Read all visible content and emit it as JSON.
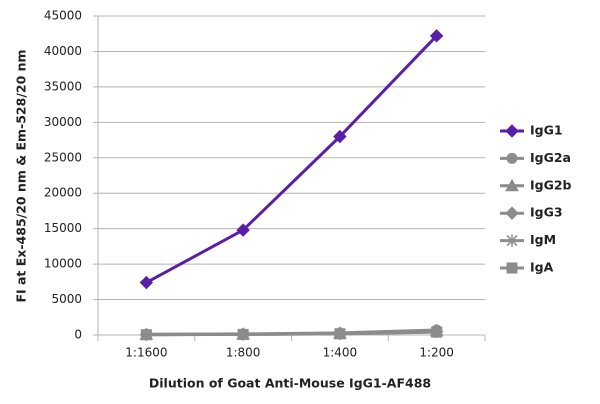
{
  "chart_data": {
    "type": "line",
    "x_label": "Dilution of Goat Anti-Mouse IgG1-AF488",
    "y_label": "FI at Ex-485/20 nm & Em-528/20 nm",
    "categories": [
      "1:1600",
      "1:800",
      "1:400",
      "1:200"
    ],
    "ylim": [
      0,
      45000
    ],
    "yticks": [
      0,
      5000,
      10000,
      15000,
      20000,
      25000,
      30000,
      35000,
      40000,
      45000
    ],
    "grid": true,
    "legend": "right",
    "series": [
      {
        "name": "IgG1",
        "color": "#5a1fa8",
        "marker": "diamond",
        "values": [
          7400,
          14800,
          28000,
          42200
        ]
      },
      {
        "name": "IgG2a",
        "color": "#8c8c8c",
        "marker": "circle",
        "values": [
          100,
          150,
          300,
          700
        ]
      },
      {
        "name": "IgG2b",
        "color": "#8c8c8c",
        "marker": "triangle",
        "values": [
          80,
          120,
          250,
          600
        ]
      },
      {
        "name": "IgG3",
        "color": "#8c8c8c",
        "marker": "diamond",
        "values": [
          60,
          100,
          200,
          500
        ]
      },
      {
        "name": "IgM",
        "color": "#8c8c8c",
        "marker": "asterisk",
        "values": [
          50,
          90,
          180,
          450
        ]
      },
      {
        "name": "IgA",
        "color": "#8c8c8c",
        "marker": "square",
        "values": [
          40,
          80,
          160,
          400
        ]
      }
    ]
  }
}
